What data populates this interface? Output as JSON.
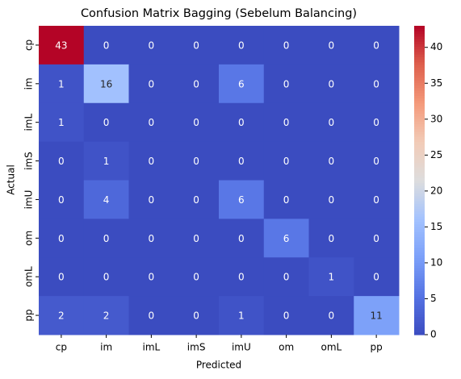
{
  "chart_data": {
    "type": "heatmap",
    "title": "Confusion Matrix Bagging (Sebelum Balancing)",
    "xlabel": "Predicted",
    "ylabel": "Actual",
    "categories": [
      "cp",
      "im",
      "imL",
      "imS",
      "imU",
      "om",
      "omL",
      "pp"
    ],
    "values": [
      [
        43,
        0,
        0,
        0,
        0,
        0,
        0,
        0
      ],
      [
        1,
        16,
        0,
        0,
        6,
        0,
        0,
        0
      ],
      [
        1,
        0,
        0,
        0,
        0,
        0,
        0,
        0
      ],
      [
        0,
        1,
        0,
        0,
        0,
        0,
        0,
        0
      ],
      [
        0,
        4,
        0,
        0,
        6,
        0,
        0,
        0
      ],
      [
        0,
        0,
        0,
        0,
        0,
        6,
        0,
        0
      ],
      [
        0,
        0,
        0,
        0,
        0,
        0,
        1,
        0
      ],
      [
        2,
        2,
        0,
        0,
        1,
        0,
        0,
        11
      ]
    ],
    "colormap": "coolwarm",
    "clim": [
      0,
      43
    ],
    "cticks": [
      0,
      5,
      10,
      15,
      20,
      25,
      30,
      35,
      40
    ]
  }
}
